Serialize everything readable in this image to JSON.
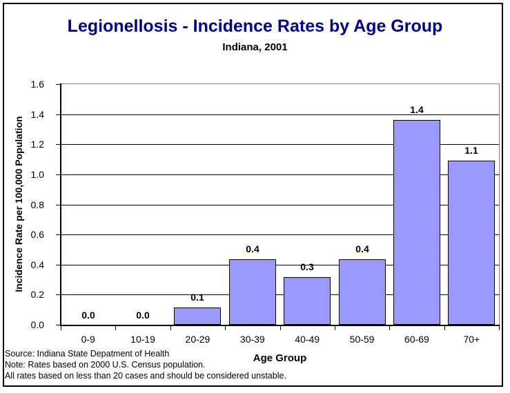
{
  "chart_data": {
    "type": "bar",
    "title": "Legionellosis - Incidence Rates by Age Group",
    "subtitle": "Indiana, 2001",
    "xlabel": "Age Group",
    "ylabel": "Incidence Rate per 100,000 Population",
    "categories": [
      "0-9",
      "10-19",
      "20-29",
      "30-39",
      "40-49",
      "50-59",
      "60-69",
      "70+"
    ],
    "values": [
      0.0,
      0.0,
      0.1,
      0.4,
      0.3,
      0.4,
      1.4,
      1.1
    ],
    "value_labels": [
      "0.0",
      "0.0",
      "0.1",
      "0.4",
      "0.3",
      "0.4",
      "1.4",
      "1.1"
    ],
    "bar_heights_est": [
      0.0,
      0.0,
      0.115,
      0.435,
      0.315,
      0.435,
      1.36,
      1.09
    ],
    "ylim": [
      0,
      1.6
    ],
    "yticks": [
      "0.0",
      "0.2",
      "0.4",
      "0.6",
      "0.8",
      "1.0",
      "1.2",
      "1.4",
      "1.6"
    ],
    "grid": true,
    "legend": "none",
    "colors": {
      "bar_fill": "#9999FF",
      "bar_border": "#000000",
      "gridline": "#000000",
      "plot_border": "#808080",
      "title": "#000080",
      "text": "#000000"
    }
  },
  "footer": {
    "lines": [
      "Source: Indiana State Depatment of Health",
      "Note: Rates based on 2000 U.S. Census population.",
      "All rates based on less than 20 cases and should be considered unstable."
    ]
  }
}
